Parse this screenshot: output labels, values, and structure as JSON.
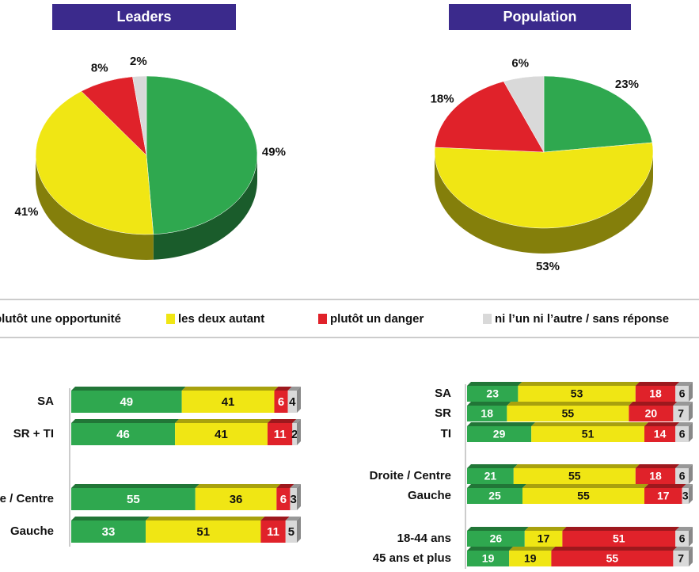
{
  "legend": [
    {
      "name": "plutôt une opportunité",
      "color": "#2fa84f"
    },
    {
      "name": "les deux autant",
      "color": "#f0e614"
    },
    {
      "name": "plutôt un danger",
      "color": "#e0222a"
    },
    {
      "name": "ni l’un ni l’autre / sans réponse",
      "color": "#d9d9d9"
    }
  ],
  "chart_data": [
    {
      "type": "pie",
      "title": "Leaders",
      "values": [
        49,
        41,
        8,
        2
      ],
      "value_labels": [
        "49%",
        "41%",
        "8%",
        "2%"
      ]
    },
    {
      "type": "pie",
      "title": "Population",
      "values": [
        23,
        53,
        18,
        6
      ],
      "value_labels": [
        "23%",
        "53%",
        "18%",
        "6%"
      ]
    },
    {
      "type": "bar",
      "stacked": true,
      "orientation": "horizontal",
      "categories": [
        "SA",
        "SR + TI",
        "Droite / Centre",
        "Gauche"
      ],
      "series": [
        {
          "values": [
            49,
            46,
            55,
            33
          ]
        },
        {
          "values": [
            41,
            41,
            36,
            51
          ]
        },
        {
          "values": [
            6,
            11,
            6,
            11
          ]
        },
        {
          "values": [
            4,
            2,
            3,
            5
          ]
        }
      ]
    },
    {
      "type": "bar",
      "stacked": true,
      "orientation": "horizontal",
      "categories": [
        "SA",
        "SR",
        "TI",
        "Droite / Centre",
        "Gauche",
        "18-44 ans",
        "45 ans et plus"
      ],
      "series": [
        {
          "values": [
            23,
            18,
            29,
            21,
            25,
            26,
            19
          ]
        },
        {
          "values": [
            53,
            55,
            51,
            55,
            55,
            17,
            19
          ]
        },
        {
          "values": [
            18,
            20,
            14,
            18,
            17,
            51,
            55
          ]
        },
        {
          "values": [
            6,
            7,
            6,
            6,
            3,
            6,
            7
          ]
        }
      ]
    }
  ]
}
